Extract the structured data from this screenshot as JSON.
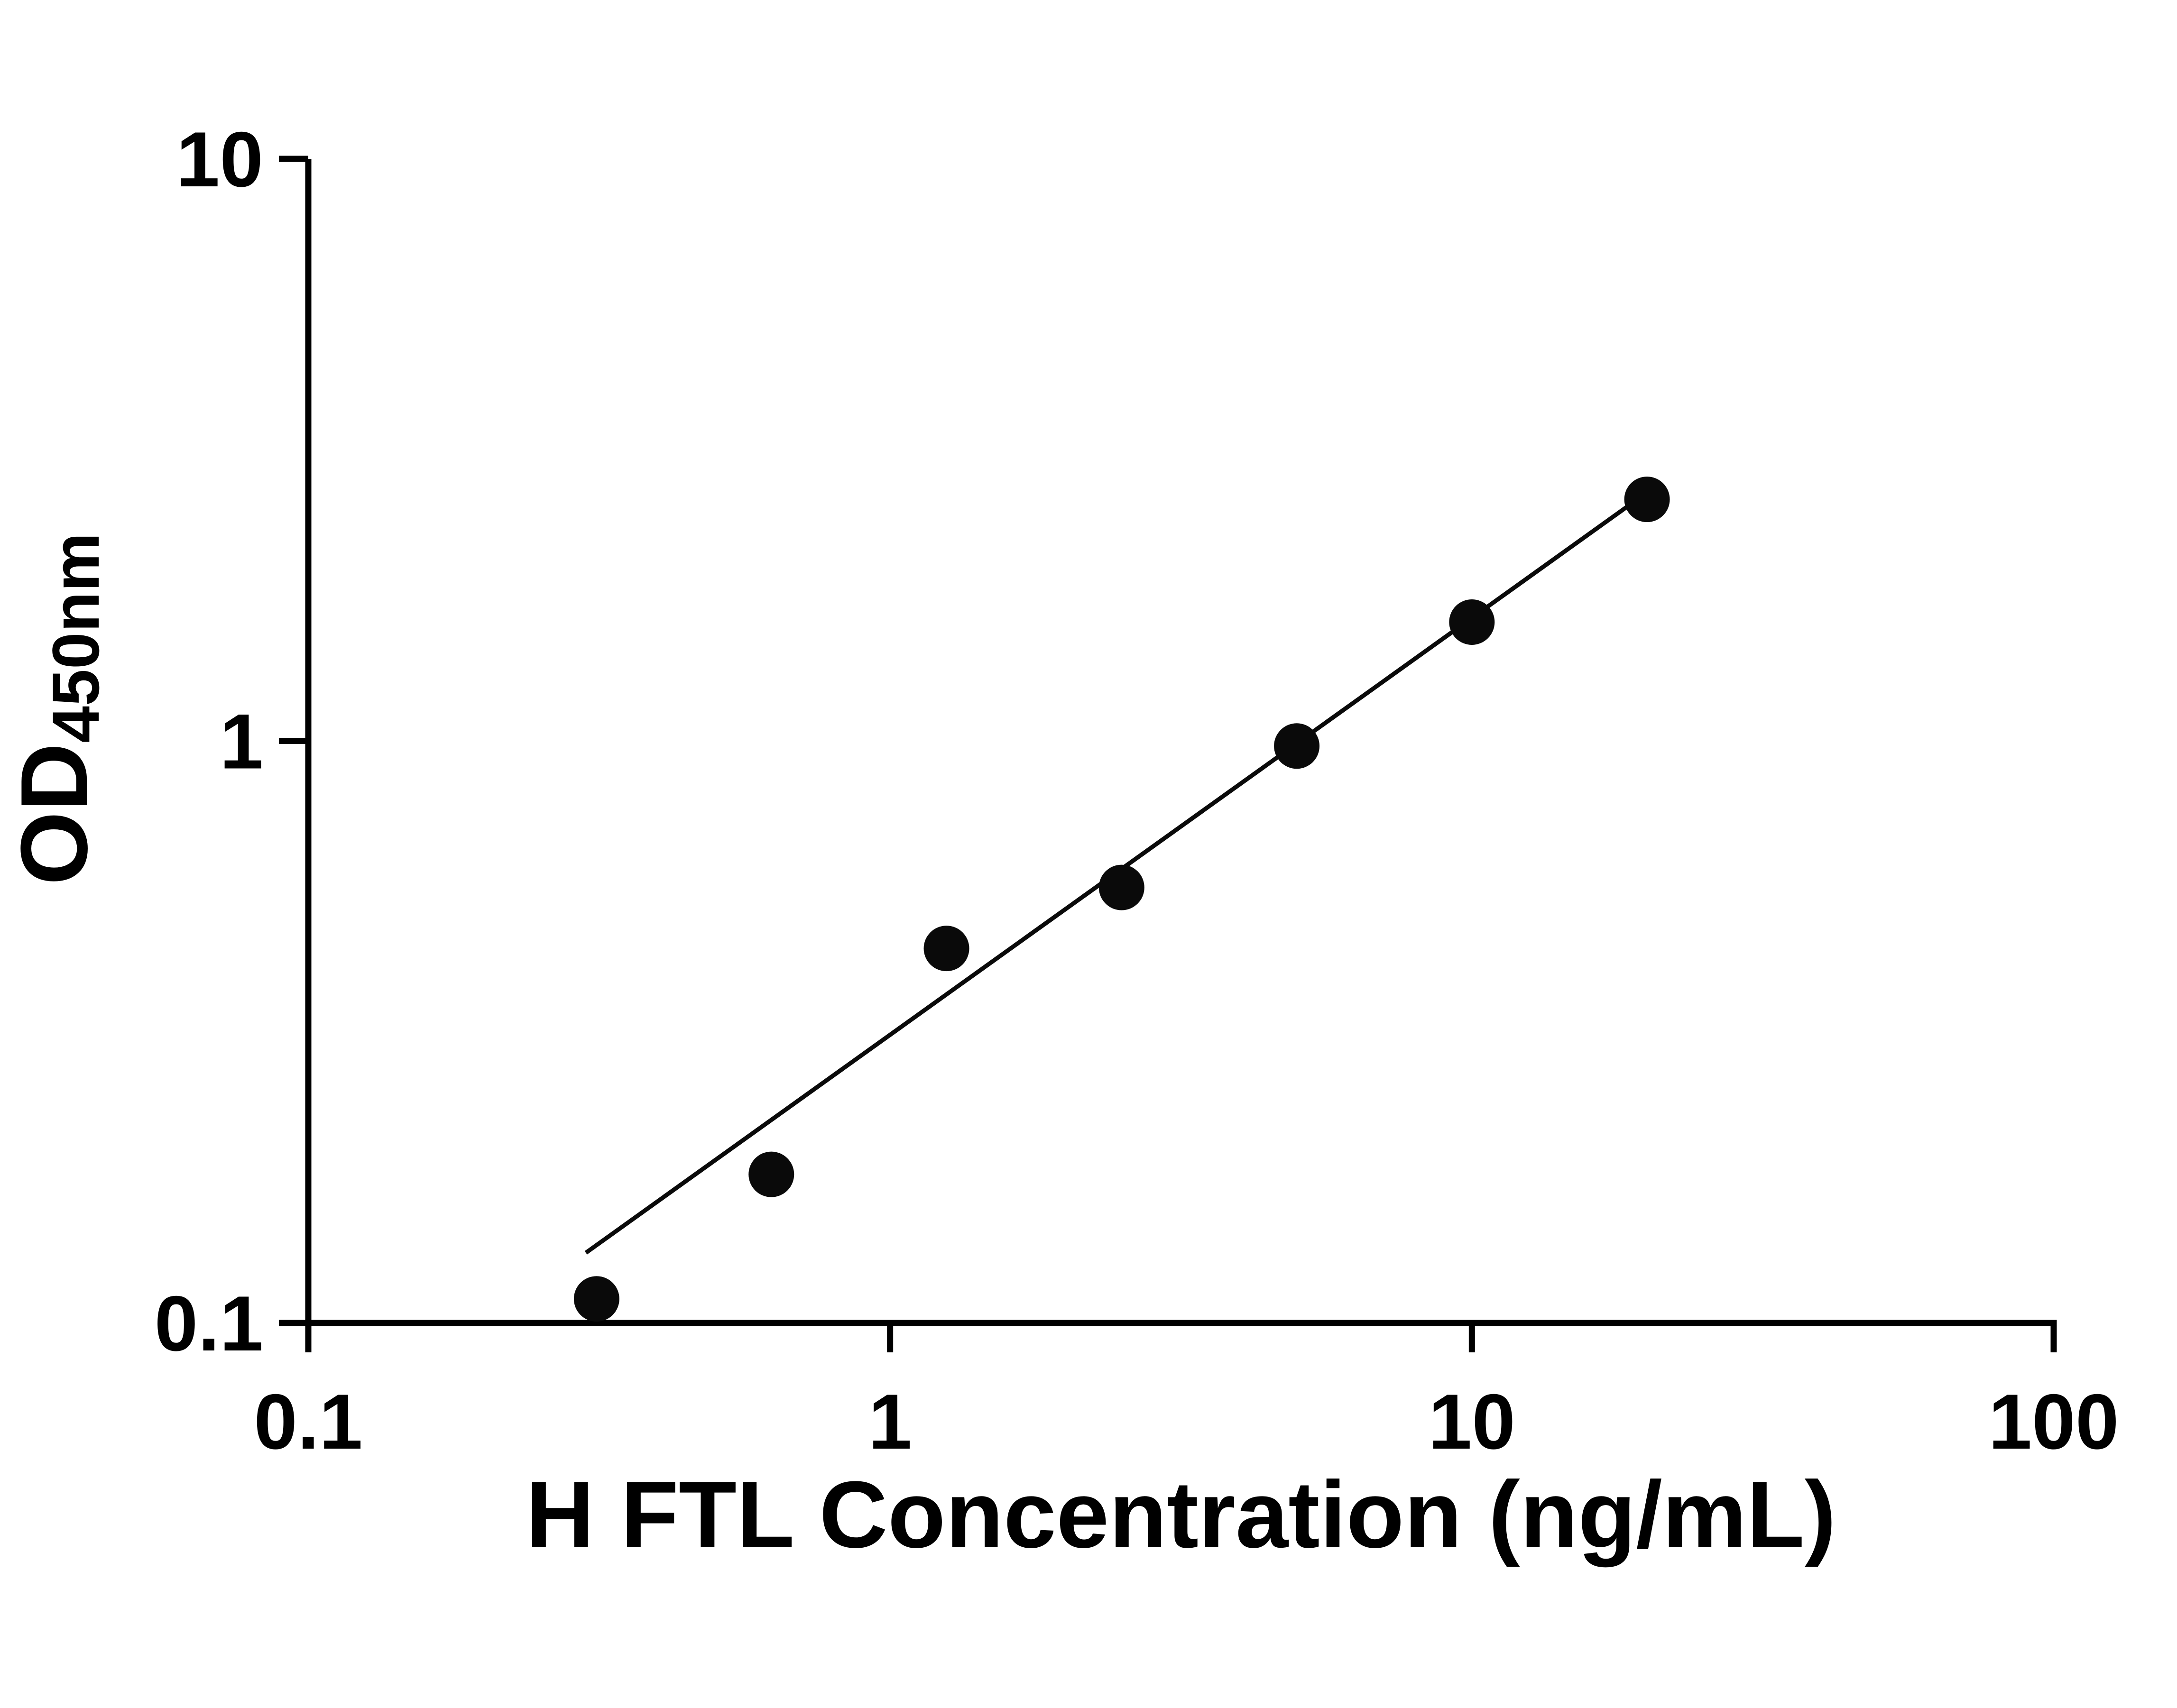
{
  "chart_data": {
    "type": "scatter",
    "title": "",
    "xlabel": "H FTL Concentration (ng/mL)",
    "ylabel": "OD450nm",
    "ylabel_main": "OD",
    "ylabel_sub": "450nm",
    "x_scale": "log",
    "y_scale": "log",
    "xlim": [
      0.1,
      100
    ],
    "ylim": [
      0.1,
      10
    ],
    "x_ticks": [
      0.1,
      1,
      10,
      100
    ],
    "x_tick_labels": [
      "0.1",
      "1",
      "10",
      "100"
    ],
    "y_ticks": [
      0.1,
      1,
      10
    ],
    "y_tick_labels": [
      "0.1",
      "1",
      "10"
    ],
    "grid": false,
    "legend": false,
    "background": "#ffffff",
    "axis_color": "#000000",
    "marker_color": "#0a0a0a",
    "line_color": "#0a0a0a",
    "points": [
      {
        "x": 0.313,
        "y": 0.11
      },
      {
        "x": 0.625,
        "y": 0.18
      },
      {
        "x": 1.25,
        "y": 0.44
      },
      {
        "x": 2.5,
        "y": 0.56
      },
      {
        "x": 5,
        "y": 0.98
      },
      {
        "x": 10,
        "y": 1.6
      },
      {
        "x": 20,
        "y": 2.6
      }
    ],
    "trend_line": {
      "x1": 0.3,
      "y1": 0.132,
      "x2": 20.5,
      "y2": 2.72
    }
  }
}
